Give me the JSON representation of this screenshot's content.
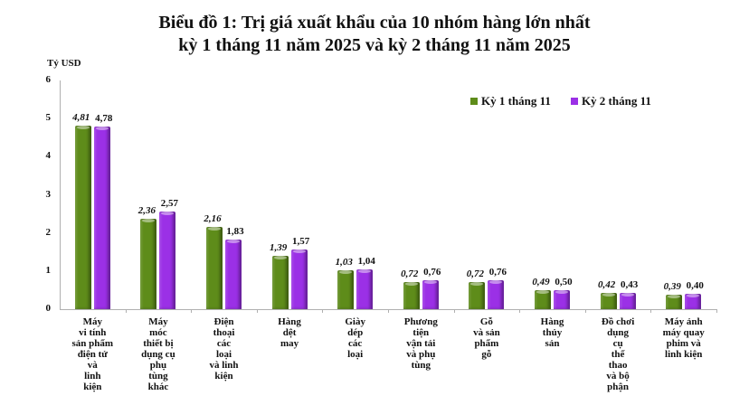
{
  "title_line1": "Biểu đồ 1: Trị giá xuất khẩu của 10 nhóm hàng lớn nhất",
  "title_line2": "kỳ 1 tháng 11 năm 2025 và kỳ 2 tháng 11 năm 2025",
  "y_unit": "Tỷ USD",
  "legend": [
    {
      "label": "Kỳ 1 tháng 11",
      "color": "#5e8c1a"
    },
    {
      "label": "Kỳ 2 tháng 11",
      "color": "#9b30e6"
    }
  ],
  "y_ticks": [
    "0",
    "1",
    "2",
    "3",
    "4",
    "5",
    "6"
  ],
  "chart_data": {
    "type": "bar",
    "title": "Biểu đồ 1: Trị giá xuất khẩu của 10 nhóm hàng lớn nhất kỳ 1 tháng 11 năm 2025 và kỳ 2 tháng 11 năm 2025",
    "xlabel": "",
    "ylabel": "Tỷ USD",
    "ylim": [
      0,
      6
    ],
    "yticks": [
      0,
      1,
      2,
      3,
      4,
      5,
      6
    ],
    "grid": false,
    "legend_position": "top-right",
    "categories": [
      "Máy vi tính sản phẩm điện tử và linh kiện",
      "Máy móc thiết bị dụng cụ phụ tùng khác",
      "Điện thoại các loại và linh kiện",
      "Hàng dệt may",
      "Giày dép các loại",
      "Phương tiện vận tải và phụ tùng",
      "Gỗ và sản phẩm gỗ",
      "Hàng thủy sản",
      "Đồ chơi dụng cụ thể thao và bộ phận",
      "Máy ảnh máy quay phim và linh kiện"
    ],
    "category_labels": [
      "Máy\nvi tính\nsản phẩm\nđiện tử\nvà\nlinh\nkiện",
      "Máy\nmóc\nthiết bị\ndụng cụ\nphụ\ntùng\nkhác",
      "Điện\nthoại\ncác\nloại\nvà linh\nkiện",
      "Hàng\ndệt\nmay",
      "Giày\ndép\ncác\nloại",
      "Phương\ntiện\nvận tải\nvà phụ\ntùng",
      "Gỗ\nvà sản\nphẩm\ngỗ",
      "Hàng\nthủy\nsản",
      "Đồ chơi\ndụng\ncụ\nthể\nthao\nvà bộ\nphận",
      "Máy ảnh\nmáy quay\nphim và\nlinh kiện"
    ],
    "series": [
      {
        "name": "Kỳ 1 tháng 11",
        "color": "#5e8c1a",
        "values": [
          4.81,
          2.36,
          2.16,
          1.39,
          1.03,
          0.72,
          0.72,
          0.49,
          0.42,
          0.39
        ],
        "labels": [
          "4,81",
          "2,36",
          "2,16",
          "1,39",
          "1,03",
          "0,72",
          "0,72",
          "0,49",
          "0,42",
          "0,39"
        ]
      },
      {
        "name": "Kỳ 2 tháng 11",
        "color": "#9b30e6",
        "values": [
          4.78,
          2.57,
          1.83,
          1.57,
          1.04,
          0.76,
          0.76,
          0.5,
          0.43,
          0.4
        ],
        "labels": [
          "4,78",
          "2,57",
          "1,83",
          "1,57",
          "1,04",
          "0,76",
          "0,76",
          "0,50",
          "0,43",
          "0,40"
        ]
      }
    ]
  }
}
